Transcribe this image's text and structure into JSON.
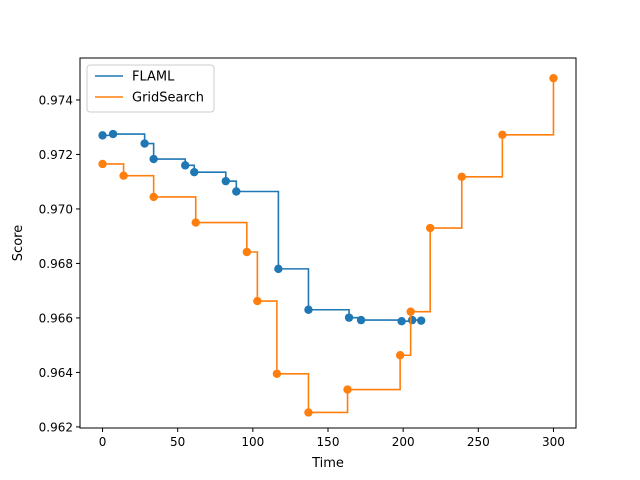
{
  "chart_data": {
    "type": "line",
    "title": "",
    "xlabel": "Time",
    "ylabel": "Score",
    "xlim": [
      -15,
      315
    ],
    "ylim": [
      0.96196,
      0.97554
    ],
    "xticks": [
      0,
      50,
      100,
      150,
      200,
      250,
      300
    ],
    "xtick_labels": [
      "0",
      "50",
      "100",
      "150",
      "200",
      "250",
      "300"
    ],
    "yticks": [
      0.962,
      0.964,
      0.966,
      0.968,
      0.97,
      0.972,
      0.974
    ],
    "ytick_labels": [
      "0.962",
      "0.964",
      "0.966",
      "0.968",
      "0.970",
      "0.972",
      "0.974"
    ],
    "grid": false,
    "legend_position": "upper-left",
    "step_style": "post",
    "series": [
      {
        "name": "FLAML",
        "color": "#1f77b4",
        "x": [
          0,
          7,
          28,
          34,
          55,
          61,
          82,
          89,
          117,
          137,
          164,
          172,
          199,
          206,
          212
        ],
        "y": [
          0.9727,
          0.97275,
          0.9724,
          0.97183,
          0.9716,
          0.97135,
          0.97102,
          0.97064,
          0.9678,
          0.9663,
          0.96601,
          0.96592,
          0.96588,
          0.96592,
          0.9659
        ]
      },
      {
        "name": "GridSearch",
        "color": "#ff7f0e",
        "x": [
          0,
          14,
          34,
          62,
          96,
          103,
          116,
          137,
          163,
          198,
          205,
          218,
          239,
          266,
          300
        ],
        "y": [
          0.97165,
          0.97122,
          0.97044,
          0.9695,
          0.96842,
          0.96662,
          0.96395,
          0.96253,
          0.96337,
          0.96463,
          0.96623,
          0.9693,
          0.97118,
          0.97272,
          0.9748
        ]
      }
    ]
  }
}
